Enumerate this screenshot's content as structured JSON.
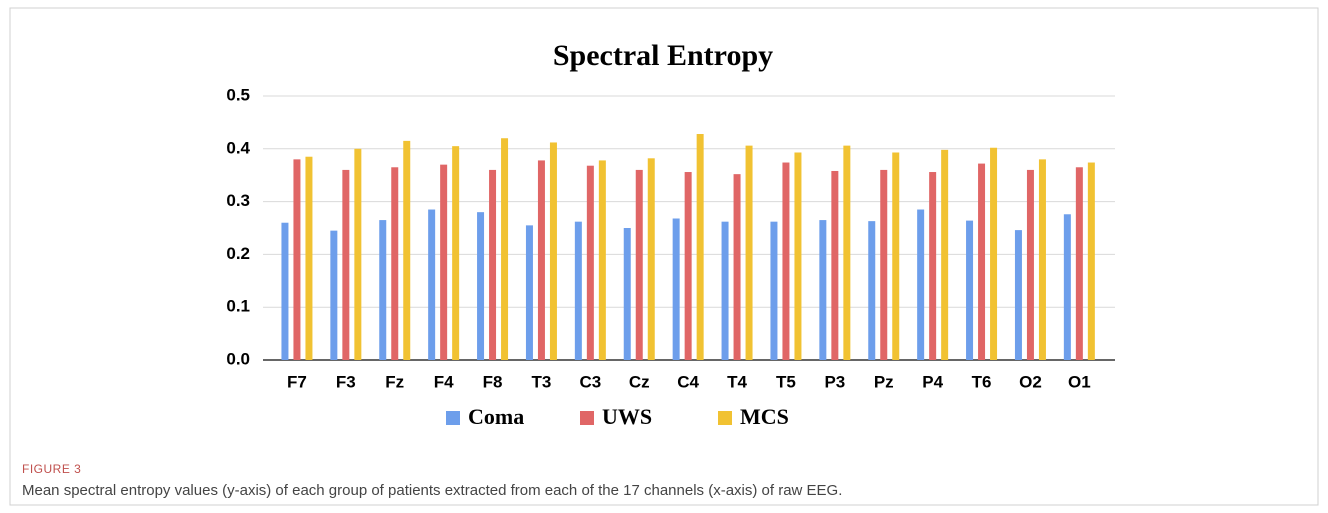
{
  "chart_data": {
    "type": "bar",
    "title": "Spectral Entropy",
    "categories": [
      "F7",
      "F3",
      "Fz",
      "F4",
      "F8",
      "T3",
      "C3",
      "Cz",
      "C4",
      "T4",
      "T5",
      "P3",
      "Pz",
      "P4",
      "T6",
      "O2",
      "O1"
    ],
    "series": [
      {
        "name": "Coma",
        "color": "#6d9eeb",
        "values": [
          0.26,
          0.245,
          0.265,
          0.285,
          0.28,
          0.255,
          0.262,
          0.25,
          0.268,
          0.262,
          0.262,
          0.265,
          0.263,
          0.285,
          0.264,
          0.246,
          0.276
        ]
      },
      {
        "name": "UWS",
        "color": "#e06666",
        "values": [
          0.38,
          0.36,
          0.365,
          0.37,
          0.36,
          0.378,
          0.368,
          0.36,
          0.356,
          0.352,
          0.374,
          0.358,
          0.36,
          0.356,
          0.372,
          0.36,
          0.365
        ]
      },
      {
        "name": "MCS",
        "color": "#f1c232",
        "values": [
          0.385,
          0.4,
          0.415,
          0.405,
          0.42,
          0.412,
          0.378,
          0.382,
          0.428,
          0.406,
          0.393,
          0.406,
          0.393,
          0.398,
          0.402,
          0.38,
          0.374
        ]
      }
    ],
    "ylim": [
      0,
      0.5
    ],
    "yticks": [
      {
        "value": 0,
        "label": "0.0"
      },
      0.1,
      0.2,
      0.3,
      0.4,
      0.5
    ],
    "grid": true,
    "legend": "bottom"
  },
  "figure_label": "FIGURE 3",
  "caption": "Mean spectral entropy values (y-axis) of each group of patients extracted from each of the 17 channels (x-axis) of raw EEG."
}
